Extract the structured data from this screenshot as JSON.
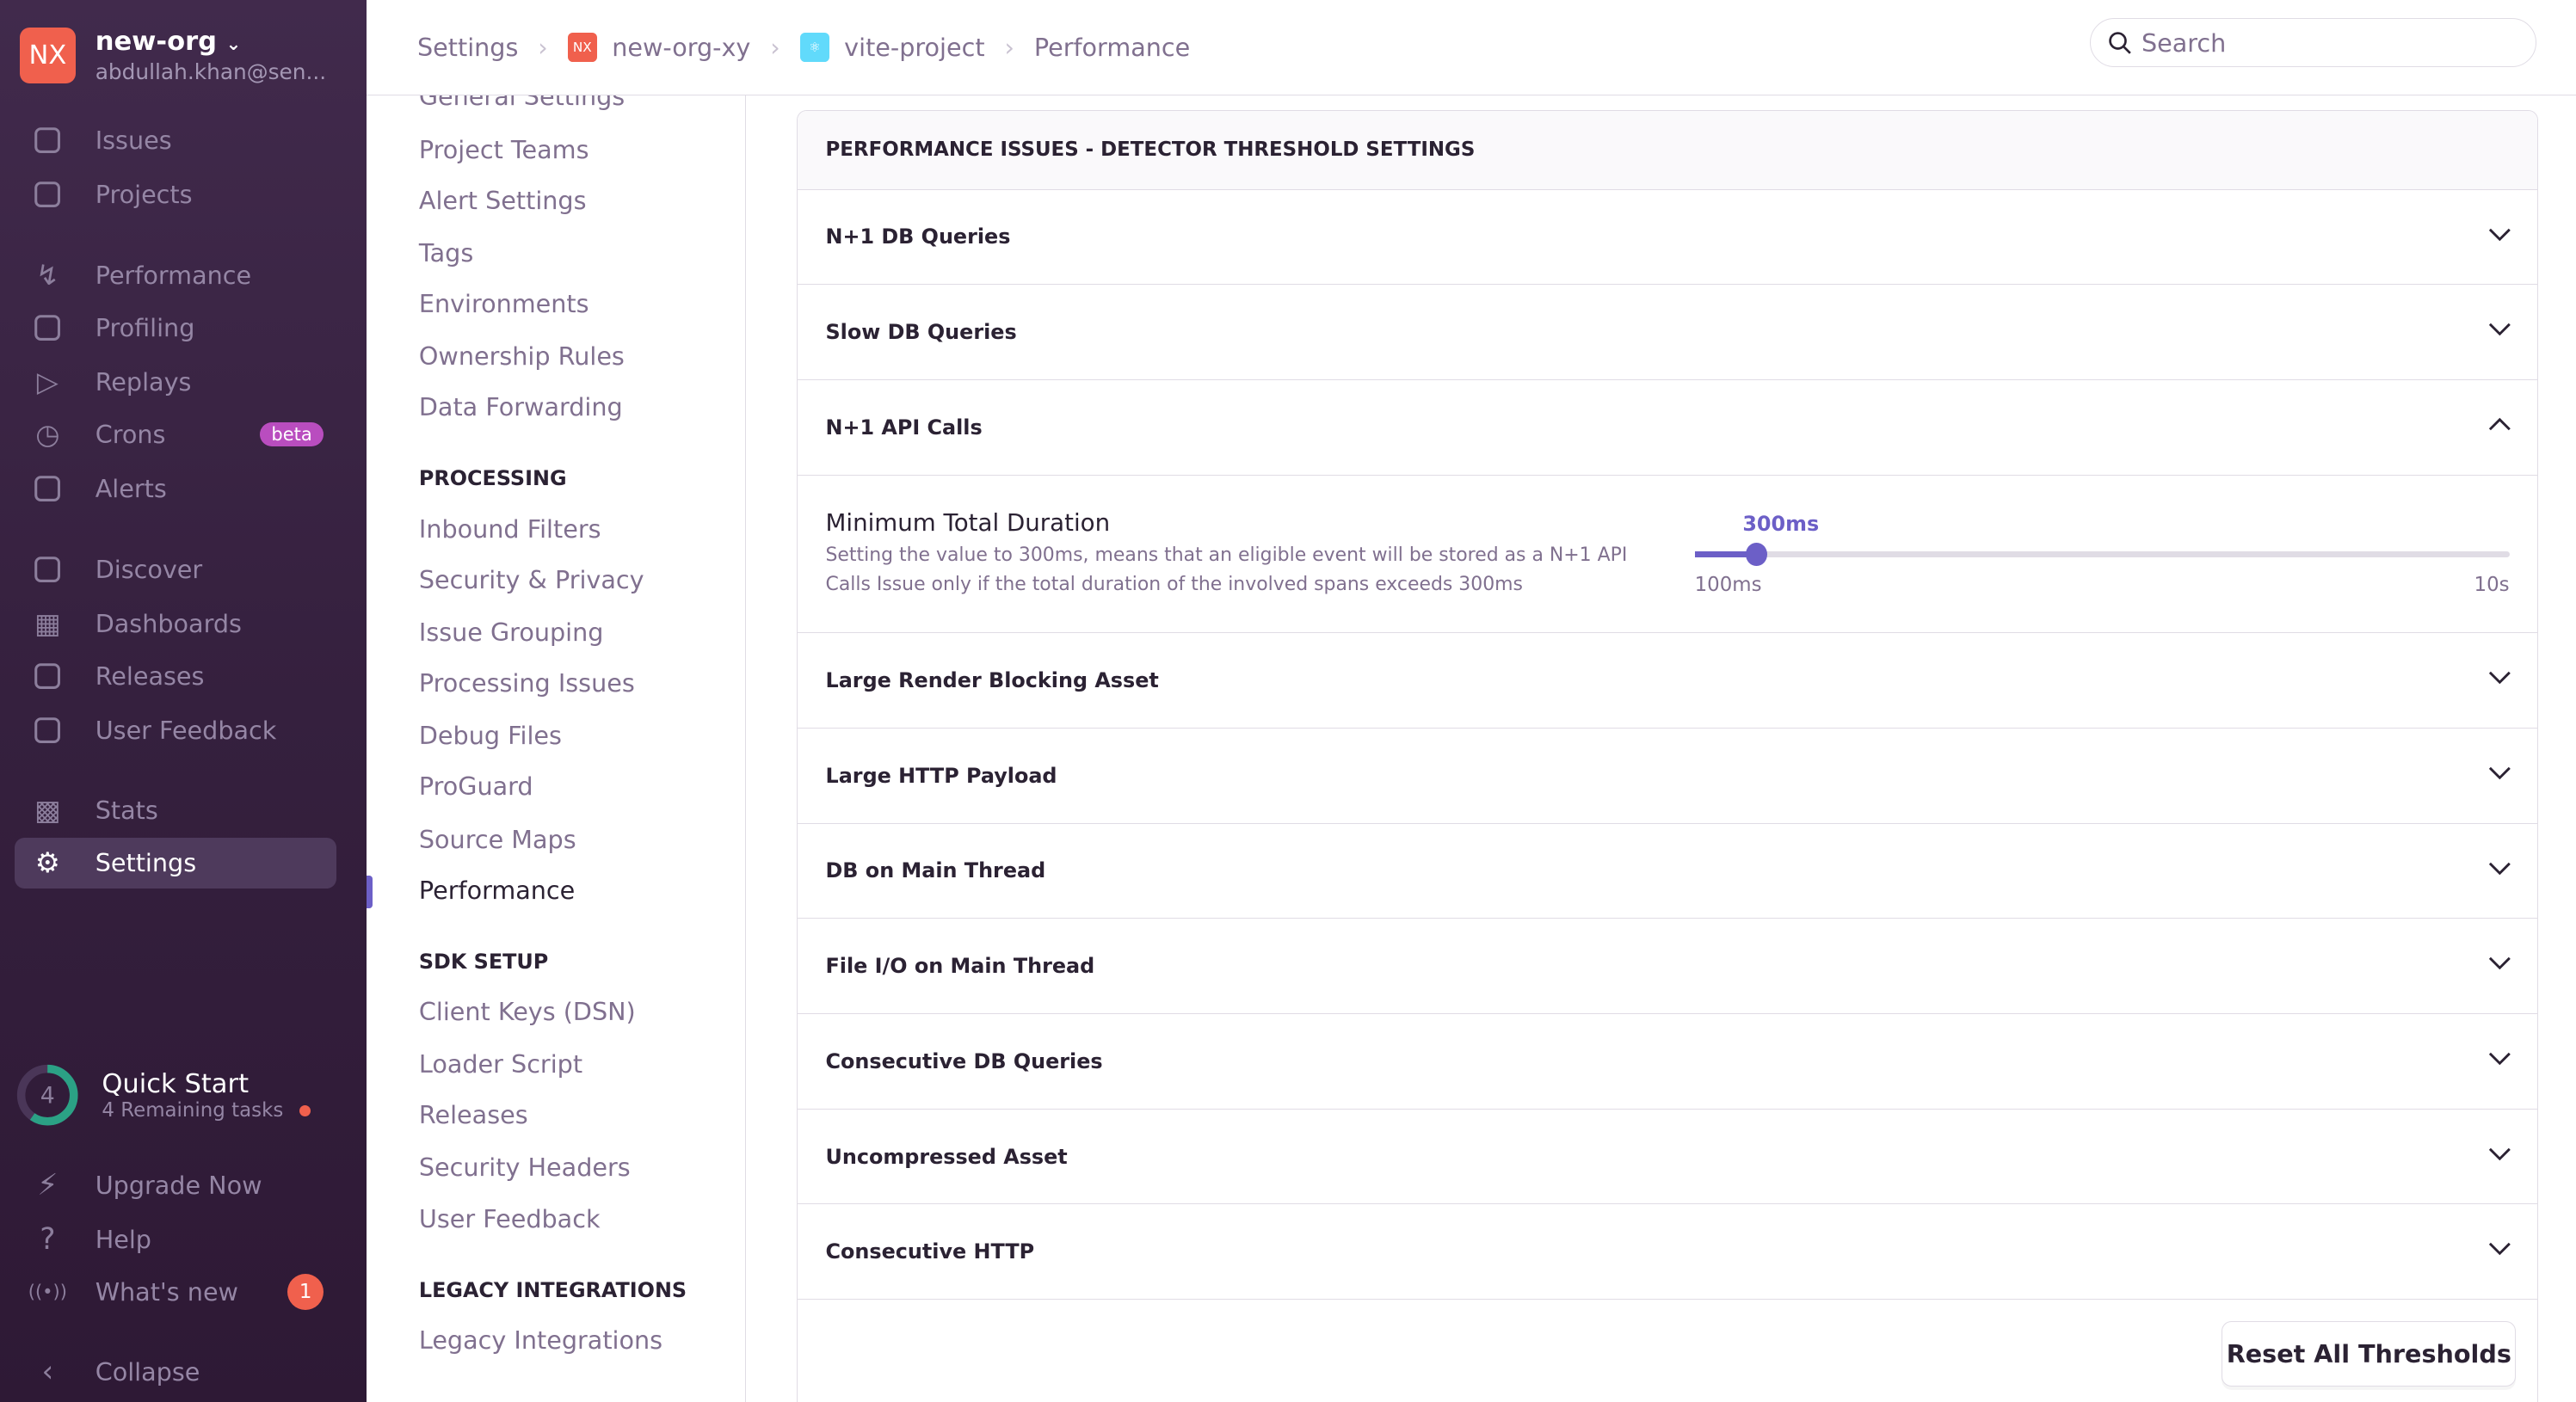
{
  "org": {
    "logo": "NX",
    "name": "new-org",
    "email": "abdullah.khan@sen..."
  },
  "sidebar": {
    "items": [
      {
        "label": "Issues",
        "icon": "inbox-icon"
      },
      {
        "label": "Projects",
        "icon": "code-file-icon"
      },
      {
        "label": "Performance",
        "icon": "lightning-icon"
      },
      {
        "label": "Profiling",
        "icon": "profiling-icon"
      },
      {
        "label": "Replays",
        "icon": "play-icon"
      },
      {
        "label": "Crons",
        "icon": "clock-icon",
        "badge": "beta"
      },
      {
        "label": "Alerts",
        "icon": "siren-icon"
      },
      {
        "label": "Discover",
        "icon": "telescope-icon"
      },
      {
        "label": "Dashboards",
        "icon": "dashboard-icon"
      },
      {
        "label": "Releases",
        "icon": "package-icon"
      },
      {
        "label": "User Feedback",
        "icon": "megaphone-icon"
      },
      {
        "label": "Stats",
        "icon": "bar-chart-icon"
      },
      {
        "label": "Settings",
        "icon": "gear-icon",
        "active": true
      }
    ],
    "quick_start": {
      "count": "4",
      "title": "Quick Start",
      "subtitle": "4 Remaining tasks",
      "progress": 0.6
    },
    "bottom": [
      {
        "label": "Upgrade Now",
        "icon": "upgrade-icon"
      },
      {
        "label": "Help",
        "icon": "help-icon"
      },
      {
        "label": "What's new",
        "icon": "broadcast-icon",
        "badge": "1"
      },
      {
        "label": "Collapse",
        "icon": "chevron-left-icon"
      }
    ]
  },
  "breadcrumb": [
    {
      "label": "Settings"
    },
    {
      "label": "new-org-xy",
      "icon": "NX"
    },
    {
      "label": "vite-project",
      "icon": "react-icon"
    },
    {
      "label": "Performance"
    }
  ],
  "search": {
    "placeholder": "Search"
  },
  "subnav": {
    "items1": [
      "General Settings",
      "Project Teams",
      "Alert Settings",
      "Tags",
      "Environments",
      "Ownership Rules",
      "Data Forwarding"
    ],
    "processing": {
      "heading": "PROCESSING",
      "items": [
        "Inbound Filters",
        "Security & Privacy",
        "Issue Grouping",
        "Processing Issues",
        "Debug Files",
        "ProGuard",
        "Source Maps",
        "Performance"
      ]
    },
    "sdk": {
      "heading": "SDK SETUP",
      "items": [
        "Client Keys (DSN)",
        "Loader Script",
        "Releases",
        "Security Headers",
        "User Feedback"
      ]
    },
    "legacy": {
      "heading": "LEGACY INTEGRATIONS",
      "items": [
        "Legacy Integrations"
      ]
    },
    "active": "Performance"
  },
  "panel": {
    "title": "PERFORMANCE ISSUES - DETECTOR THRESHOLD SETTINGS",
    "detectors": [
      "N+1 DB Queries",
      "Slow DB Queries",
      "N+1 API Calls",
      "Large Render Blocking Asset",
      "Large HTTP Payload",
      "DB on Main Thread",
      "File I/O on Main Thread",
      "Consecutive DB Queries",
      "Uncompressed Asset",
      "Consecutive HTTP"
    ],
    "expanded": "N+1 API Calls",
    "setting": {
      "title": "Minimum Total Duration",
      "desc1": "Setting the value to 300ms, means that an eligible event will be stored as a N+1 API",
      "desc2": "Calls Issue only if the total duration of the involved spans exceeds 300ms",
      "value": "300ms",
      "min": "100ms",
      "max": "10s",
      "position_fraction": 0.075
    },
    "reset_label": "Reset All Thresholds"
  },
  "colors": {
    "accent": "#6c5fc7",
    "sidebar": "#35203e",
    "badge_red": "#f0604d",
    "beta": "#b94dbf",
    "progress": "#2ba185"
  }
}
